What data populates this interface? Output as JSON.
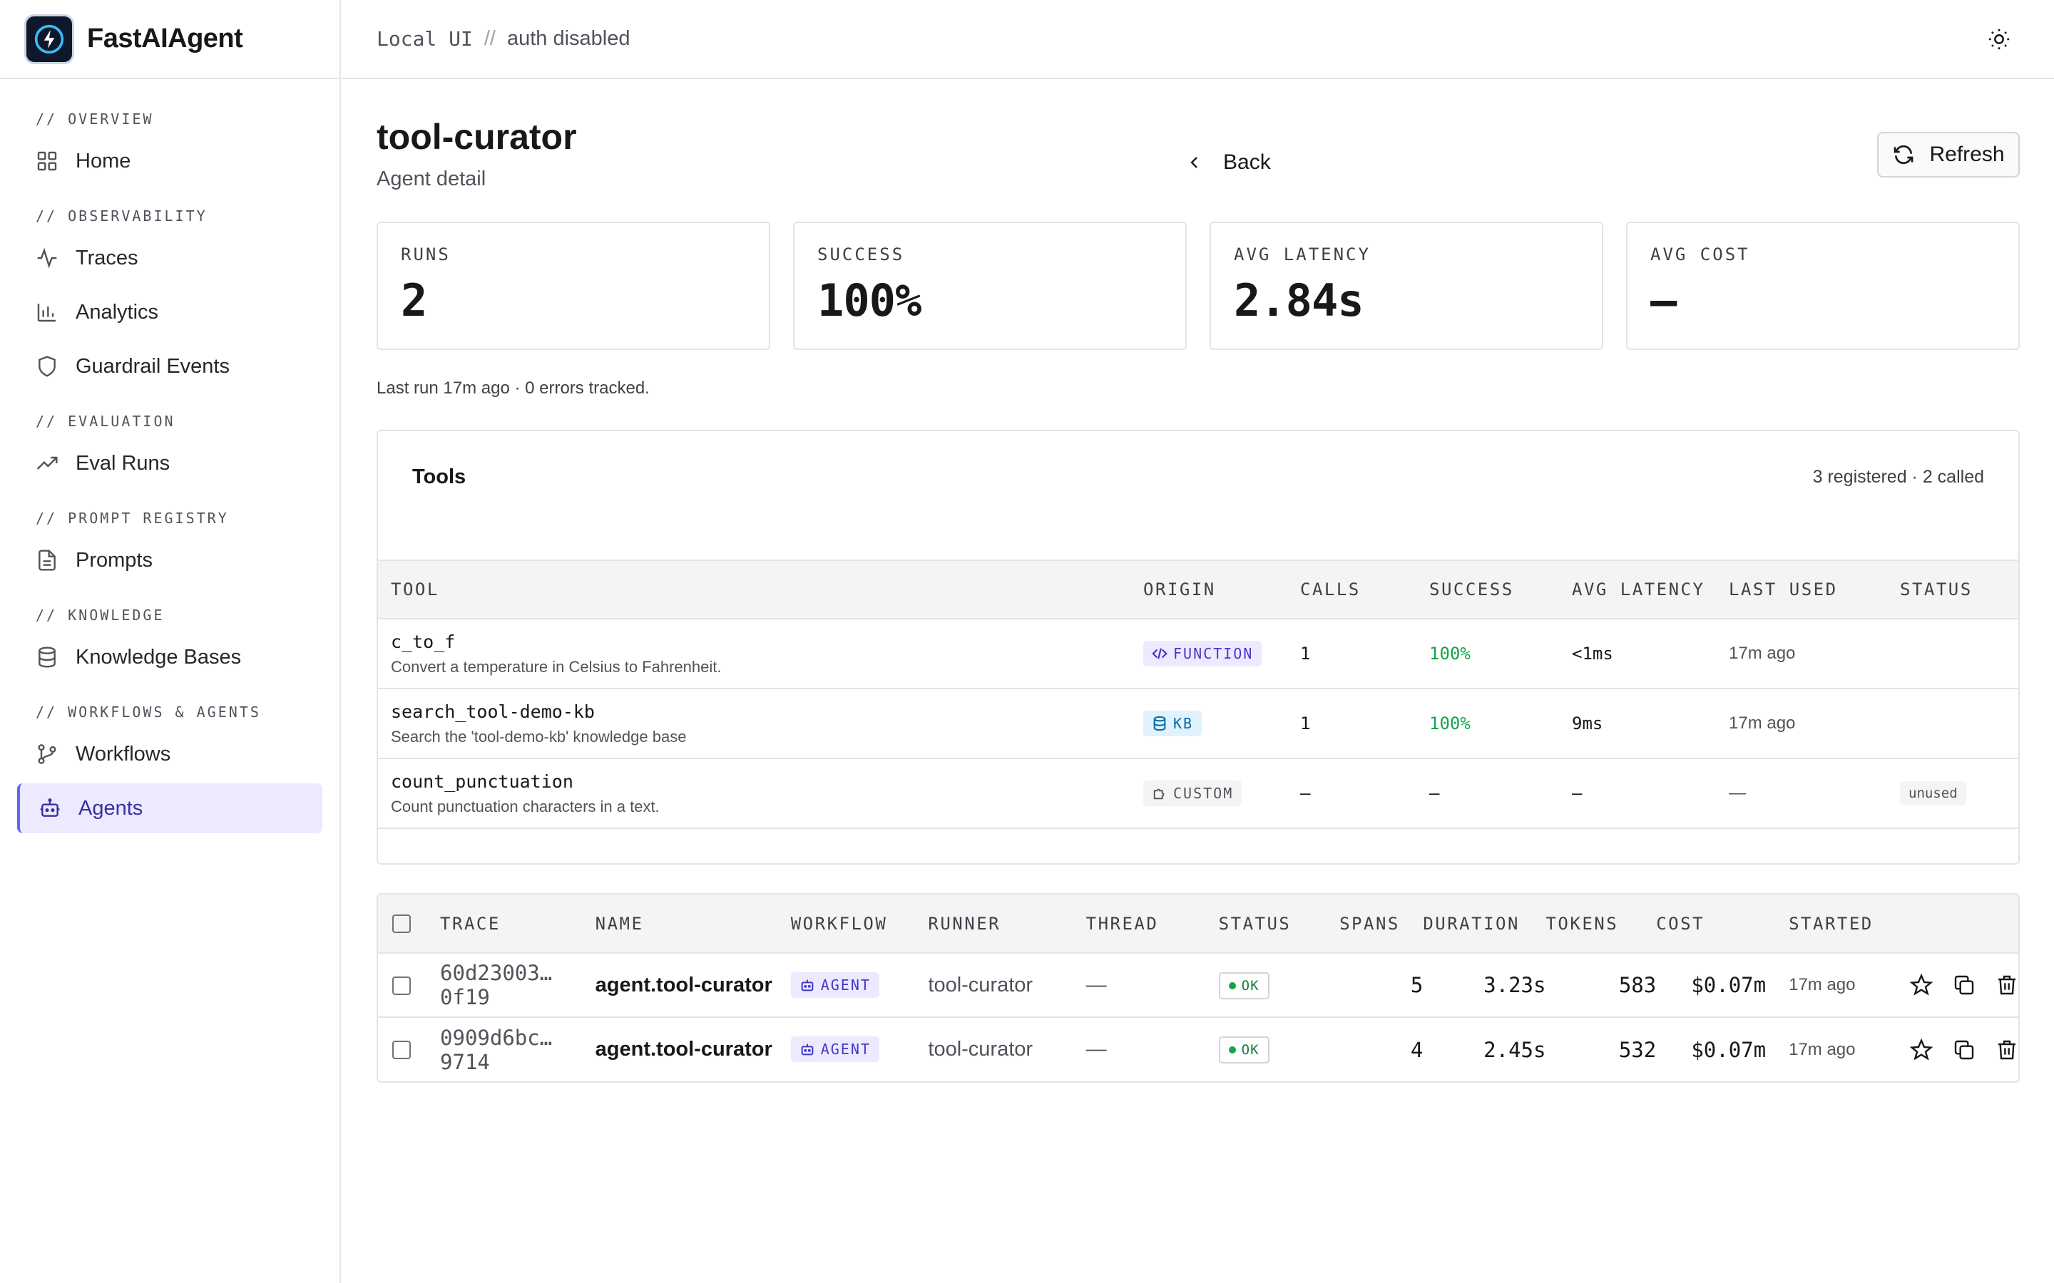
{
  "app": {
    "name": "FastAIAgent"
  },
  "topbar": {
    "mode": "Local UI",
    "separator": "//",
    "auth": "auth disabled"
  },
  "sidebar": {
    "sections": [
      {
        "label": "// OVERVIEW",
        "items": [
          {
            "label": "Home",
            "icon": "grid-icon"
          }
        ]
      },
      {
        "label": "// OBSERVABILITY",
        "items": [
          {
            "label": "Traces",
            "icon": "activity-icon"
          },
          {
            "label": "Analytics",
            "icon": "bar-chart-icon"
          },
          {
            "label": "Guardrail Events",
            "icon": "shield-icon"
          }
        ]
      },
      {
        "label": "// EVALUATION",
        "items": [
          {
            "label": "Eval Runs",
            "icon": "trending-up-icon"
          }
        ]
      },
      {
        "label": "// PROMPT REGISTRY",
        "items": [
          {
            "label": "Prompts",
            "icon": "file-text-icon"
          }
        ]
      },
      {
        "label": "// KNOWLEDGE",
        "items": [
          {
            "label": "Knowledge Bases",
            "icon": "database-icon"
          }
        ]
      },
      {
        "label": "// WORKFLOWS & AGENTS",
        "items": [
          {
            "label": "Workflows",
            "icon": "git-branch-icon"
          },
          {
            "label": "Agents",
            "icon": "bot-icon",
            "active": true
          }
        ]
      }
    ]
  },
  "page": {
    "title": "tool-curator",
    "subtitle": "Agent detail",
    "back_label": "Back",
    "refresh_label": "Refresh"
  },
  "stats": [
    {
      "label": "RUNS",
      "value": "2"
    },
    {
      "label": "SUCCESS",
      "value": "100%"
    },
    {
      "label": "AVG LATENCY",
      "value": "2.84s"
    },
    {
      "label": "AVG COST",
      "value": "—"
    }
  ],
  "summary": "Last run 17m ago · 0 errors tracked.",
  "tools": {
    "title": "Tools",
    "count": "3 registered · 2 called",
    "columns": [
      "TOOL",
      "ORIGIN",
      "CALLS",
      "SUCCESS",
      "AVG LATENCY",
      "LAST USED",
      "STATUS"
    ],
    "rows": [
      {
        "name": "c_to_f",
        "desc": "Convert a temperature in Celsius to Fahrenheit.",
        "origin": "FUNCTION",
        "calls": "1",
        "success": "100%",
        "latency": "<1ms",
        "last_used": "17m ago",
        "status": ""
      },
      {
        "name": "search_tool-demo-kb",
        "desc": "Search the 'tool-demo-kb' knowledge base",
        "origin": "KB",
        "calls": "1",
        "success": "100%",
        "latency": "9ms",
        "last_used": "17m ago",
        "status": ""
      },
      {
        "name": "count_punctuation",
        "desc": "Count punctuation characters in a text.",
        "origin": "CUSTOM",
        "calls": "—",
        "success": "—",
        "latency": "—",
        "last_used": "—",
        "status": "unused"
      }
    ]
  },
  "runs": {
    "columns": [
      "TRACE",
      "NAME",
      "WORKFLOW",
      "RUNNER",
      "THREAD",
      "STATUS",
      "SPANS",
      "DURATION",
      "TOKENS",
      "COST",
      "STARTED"
    ],
    "rows": [
      {
        "trace": "60d23003…0f19",
        "name": "agent.tool-curator",
        "workflow": "AGENT",
        "runner": "tool-curator",
        "thread": "—",
        "status": "OK",
        "spans": "5",
        "duration": "3.23s",
        "tokens": "583",
        "cost": "$0.07m",
        "started": "17m ago"
      },
      {
        "trace": "0909d6bc…9714",
        "name": "agent.tool-curator",
        "workflow": "AGENT",
        "runner": "tool-curator",
        "thread": "—",
        "status": "OK",
        "spans": "4",
        "duration": "2.45s",
        "tokens": "532",
        "cost": "$0.07m",
        "started": "17m ago"
      }
    ]
  }
}
